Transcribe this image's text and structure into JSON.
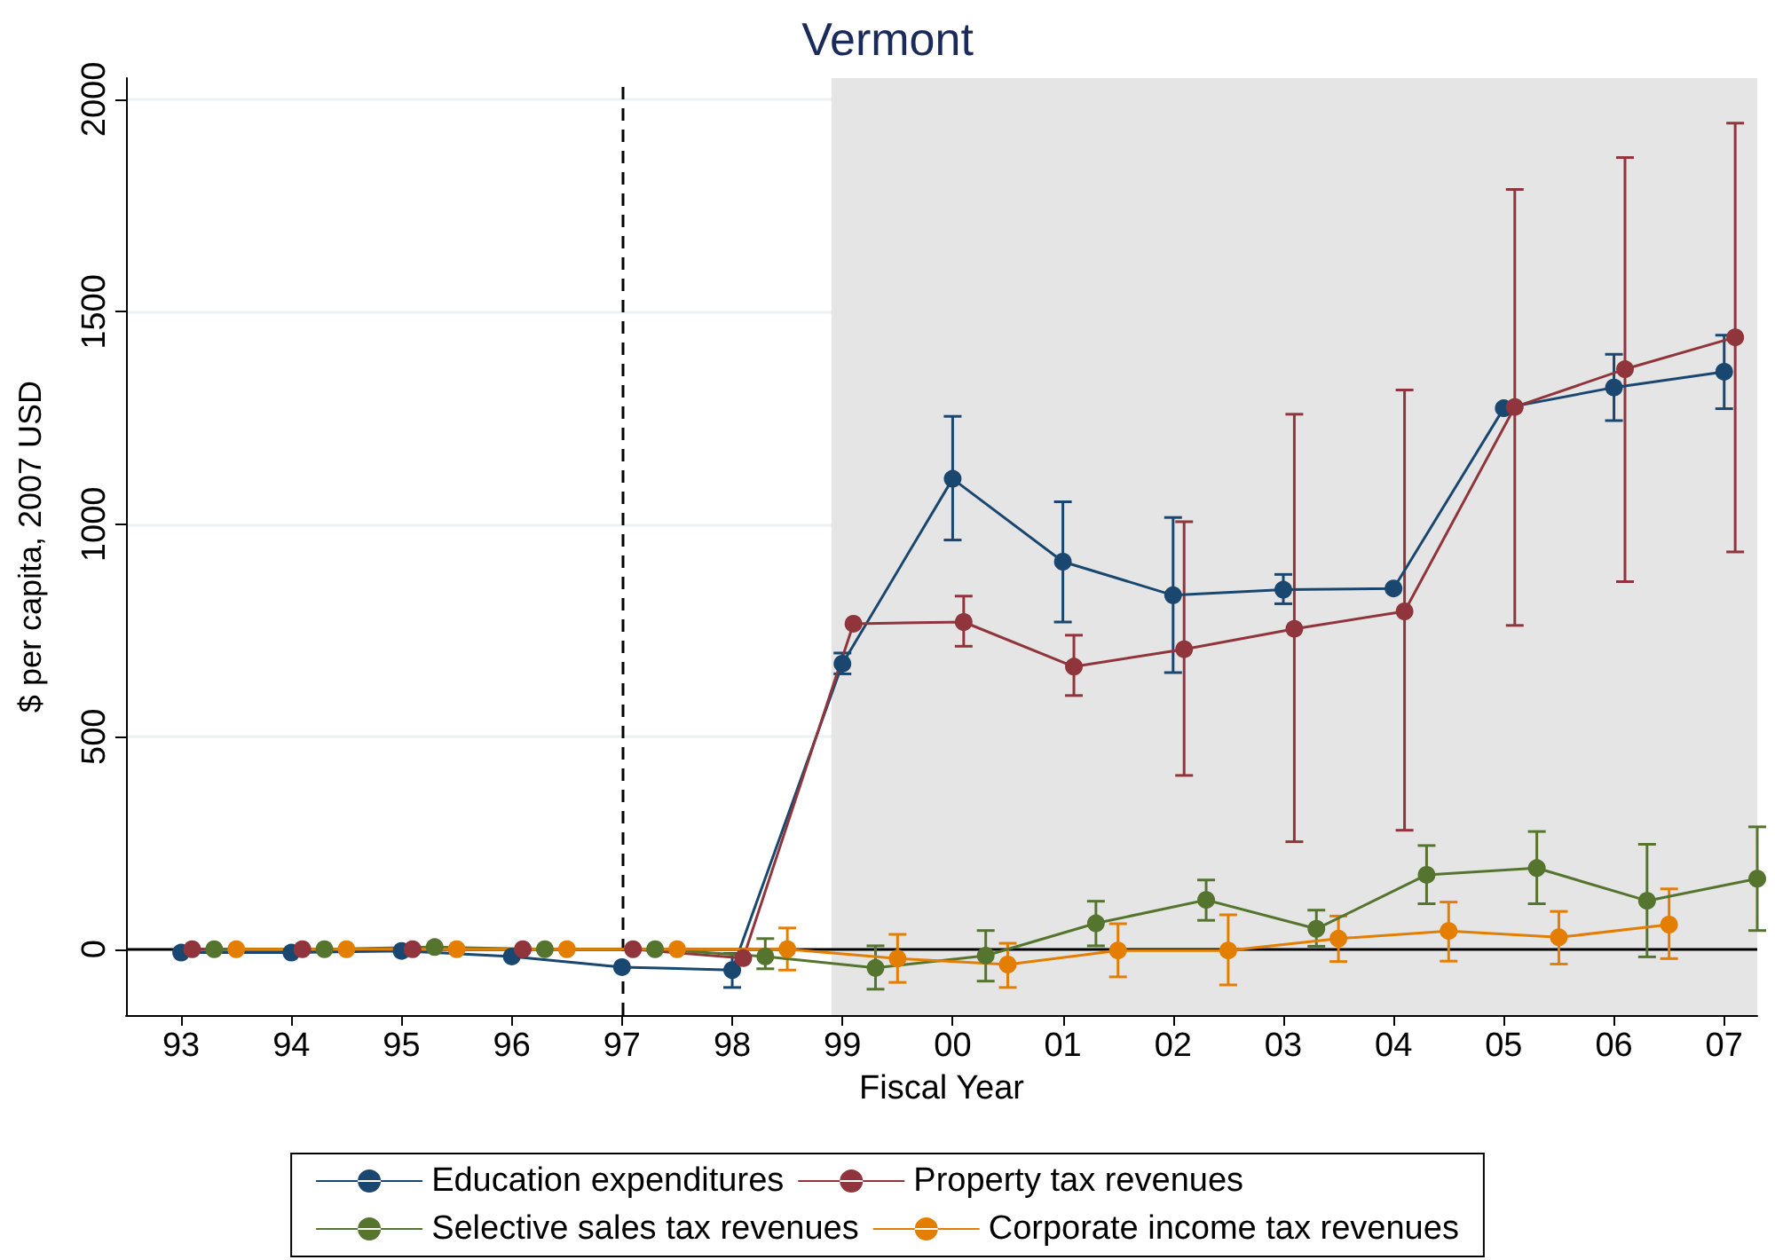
{
  "chart_data": {
    "type": "line",
    "title": "Vermont",
    "xlabel": "Fiscal Year",
    "ylabel": "$ per capita, 2007 USD",
    "xlim": [
      1992.5,
      2007.3
    ],
    "xticks": [
      {
        "value": 1993,
        "label": "93"
      },
      {
        "value": 1994,
        "label": "94"
      },
      {
        "value": 1995,
        "label": "95"
      },
      {
        "value": 1996,
        "label": "96"
      },
      {
        "value": 1997,
        "label": "97"
      },
      {
        "value": 1998,
        "label": "98"
      },
      {
        "value": 1999,
        "label": "99"
      },
      {
        "value": 2000,
        "label": "00"
      },
      {
        "value": 2001,
        "label": "01"
      },
      {
        "value": 2002,
        "label": "02"
      },
      {
        "value": 2003,
        "label": "03"
      },
      {
        "value": 2004,
        "label": "04"
      },
      {
        "value": 2005,
        "label": "05"
      },
      {
        "value": 2006,
        "label": "06"
      },
      {
        "value": 2007,
        "label": "07"
      }
    ],
    "ylim": [
      -155,
      2050
    ],
    "yticks": [
      0,
      500,
      1000,
      1500,
      2000
    ],
    "grid": "y",
    "legend": "bottom",
    "marker": "circle",
    "line_style": "solid",
    "series": [
      {
        "name": "Education expenditures",
        "color": "#1a476f",
        "x": [
          1993,
          1994,
          1995,
          1996,
          1997,
          1998,
          1999,
          2000,
          2001,
          2002,
          2003,
          2004,
          2005,
          2006,
          2007
        ],
        "values": [
          -8,
          -8,
          -4,
          -17,
          -42,
          -49,
          672,
          1107,
          912,
          833,
          846,
          849,
          1273,
          1322,
          1359
        ],
        "errors": [
          null,
          null,
          null,
          null,
          null,
          [
            -90,
            -10
          ],
          [
            648,
            697
          ],
          [
            963,
            1254
          ],
          [
            770,
            1053
          ],
          [
            651,
            1016
          ],
          [
            813,
            882
          ],
          null,
          null,
          [
            1244,
            1400
          ],
          [
            1272,
            1445
          ]
        ]
      },
      {
        "name": "Property tax revenues",
        "color": "#90353b",
        "x": [
          1993.1,
          1994.1,
          1995.1,
          1996.1,
          1997.1,
          1998.1,
          1999.1,
          2000.1,
          2001.1,
          2002.1,
          2003.1,
          2004.1,
          2005.1,
          2006.1,
          2007.1
        ],
        "values": [
          0,
          0,
          0,
          0,
          0,
          -21,
          766,
          770,
          665,
          706,
          754,
          795,
          1276,
          1365,
          1440
        ],
        "errors": [
          null,
          null,
          null,
          null,
          null,
          null,
          null,
          [
            713,
            831
          ],
          [
            597,
            739
          ],
          [
            409,
            1006
          ],
          [
            253,
            1259
          ],
          [
            280,
            1316
          ],
          [
            762,
            1788
          ],
          [
            865,
            1863
          ],
          [
            935,
            1944
          ]
        ]
      },
      {
        "name": "Selective sales tax revenues",
        "color": "#55752f",
        "x": [
          1993.3,
          1994.3,
          1995.3,
          1996.3,
          1997.3,
          1998.3,
          1999.3,
          2000.3,
          2001.3,
          2002.3,
          2003.3,
          2004.3,
          2005.3,
          2006.3,
          2007.3
        ],
        "values": [
          0,
          0,
          5,
          0,
          0,
          -17,
          -44,
          -15,
          61,
          116,
          48,
          175,
          191,
          114,
          166
        ],
        "errors": [
          null,
          null,
          null,
          null,
          null,
          [
            -46,
            25
          ],
          [
            -94,
            8
          ],
          [
            -75,
            44
          ],
          [
            8,
            113
          ],
          [
            68,
            163
          ],
          [
            7,
            92
          ],
          [
            107,
            244
          ],
          [
            107,
            277
          ],
          [
            -18,
            247
          ],
          [
            44,
            288
          ]
        ]
      },
      {
        "name": "Corporate income tax revenues",
        "color": "#e37e00",
        "x": [
          1993.5,
          1994.5,
          1995.5,
          1996.5,
          1997.5,
          1998.5,
          1999.5,
          2000.5,
          2001.5,
          2002.5,
          2003.5,
          2004.5,
          2005.5,
          2006.5
        ],
        "values": [
          0,
          0,
          0,
          0,
          0,
          0,
          -22,
          -36,
          -3,
          -3,
          25,
          43,
          28,
          58
        ],
        "errors": [
          null,
          null,
          null,
          null,
          null,
          [
            -49,
            50
          ],
          [
            -78,
            35
          ],
          [
            -90,
            14
          ],
          [
            -65,
            60
          ],
          [
            -84,
            81
          ],
          [
            -29,
            78
          ],
          [
            -28,
            111
          ],
          [
            -35,
            89
          ],
          [
            -22,
            142
          ]
        ]
      }
    ],
    "ref_lines": [
      {
        "axis": "x",
        "value": 1997,
        "color": "#000000",
        "line_style": "dashed"
      },
      {
        "axis": "y",
        "value": 0,
        "color": "#000000",
        "line_style": "solid"
      }
    ],
    "bands": [
      {
        "axis": "x",
        "from": 1998.9,
        "to": 2007.3,
        "color": "#e5e5e5"
      }
    ]
  }
}
